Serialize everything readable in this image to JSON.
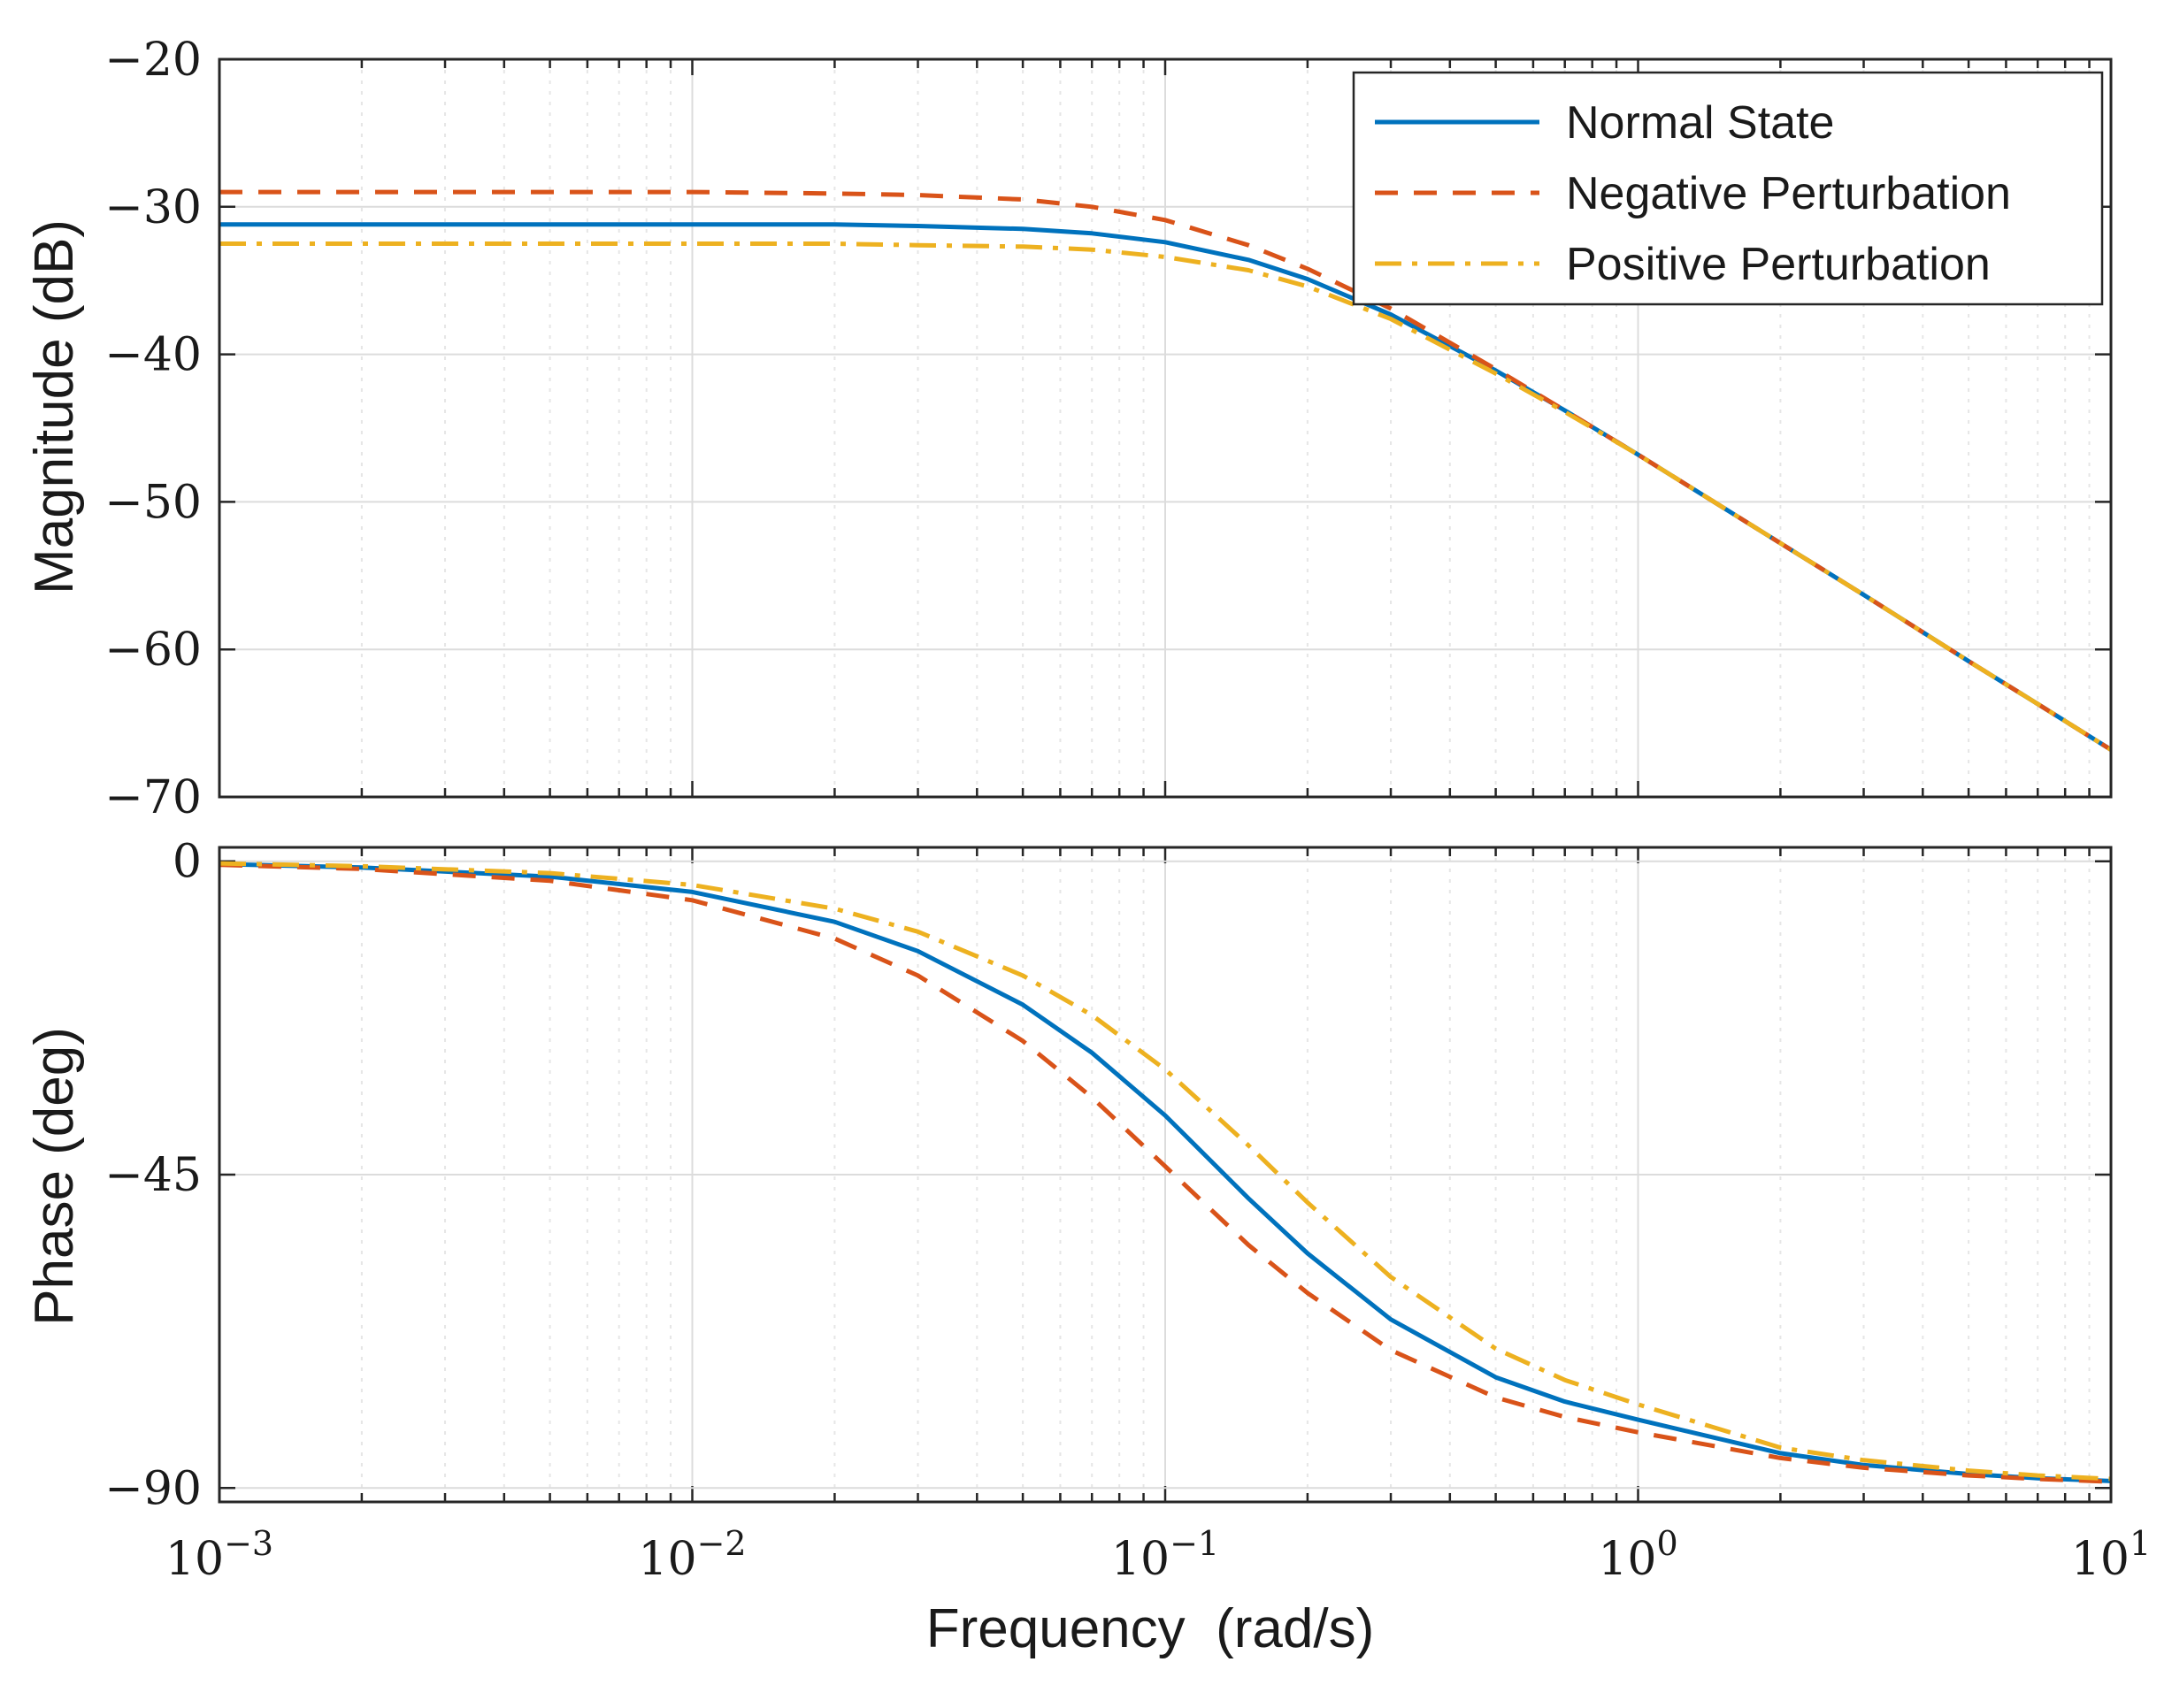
{
  "chart_data": [
    {
      "type": "line",
      "panel": "magnitude",
      "ylabel": "Magnitude (dB)",
      "xscale": "log",
      "xlim": [
        0.001,
        10
      ],
      "ylim": [
        -70,
        -20
      ],
      "yticks": [
        -20,
        -30,
        -40,
        -50,
        -60,
        -70
      ],
      "ytick_labels": [
        "−20",
        "−30",
        "−40",
        "−50",
        "−60",
        "−70"
      ],
      "grid": true,
      "legend_position": "top-right",
      "x": [
        0.001,
        0.002,
        0.005,
        0.01,
        0.02,
        0.03,
        0.05,
        0.07,
        0.1,
        0.15,
        0.2,
        0.3,
        0.5,
        0.7,
        1,
        2,
        3,
        5,
        7,
        10
      ],
      "series": [
        {
          "name": "Normal State",
          "color": "#0072BD",
          "style": "solid",
          "values": [
            -31.2,
            -31.2,
            -31.2,
            -31.2,
            -31.2,
            -31.3,
            -31.5,
            -31.8,
            -32.4,
            -33.6,
            -34.9,
            -37.3,
            -41.1,
            -43.8,
            -46.8,
            -52.8,
            -56.3,
            -60.8,
            -63.7,
            -66.8
          ]
        },
        {
          "name": "Negative Perturbation",
          "color": "#D95319",
          "style": "dashed",
          "values": [
            -29.0,
            -29.0,
            -29.0,
            -29.0,
            -29.1,
            -29.2,
            -29.5,
            -30.0,
            -30.9,
            -32.6,
            -34.2,
            -36.9,
            -41.0,
            -43.8,
            -46.8,
            -52.8,
            -56.3,
            -60.8,
            -63.7,
            -66.8
          ]
        },
        {
          "name": "Positive Perturbation",
          "color": "#EDB120",
          "style": "dashdot",
          "values": [
            -32.5,
            -32.5,
            -32.5,
            -32.5,
            -32.5,
            -32.6,
            -32.7,
            -32.9,
            -33.4,
            -34.3,
            -35.4,
            -37.6,
            -41.3,
            -43.9,
            -46.8,
            -52.8,
            -56.3,
            -60.8,
            -63.7,
            -66.8
          ]
        }
      ]
    },
    {
      "type": "line",
      "panel": "phase",
      "ylabel": "Phase (deg)",
      "xlabel": "Frequency  (rad/s)",
      "xscale": "log",
      "xlim": [
        0.001,
        10
      ],
      "ylim": [
        -92,
        2
      ],
      "yticks": [
        0,
        -45,
        -90
      ],
      "ytick_labels": [
        "0",
        "−45",
        "−90"
      ],
      "xticks": [
        0.001,
        0.01,
        0.1,
        1,
        10
      ],
      "xtick_labels": [
        {
          "base": "10",
          "exp": "−3"
        },
        {
          "base": "10",
          "exp": "−2"
        },
        {
          "base": "10",
          "exp": "−1"
        },
        {
          "base": "10",
          "exp": "0"
        },
        {
          "base": "10",
          "exp": "1"
        }
      ],
      "grid": true,
      "x": [
        0.001,
        0.002,
        0.005,
        0.01,
        0.02,
        0.03,
        0.05,
        0.07,
        0.1,
        0.15,
        0.2,
        0.3,
        0.5,
        0.7,
        1,
        2,
        3,
        5,
        7,
        10
      ],
      "series": [
        {
          "name": "Normal State",
          "color": "#0072BD",
          "style": "solid",
          "values": [
            -0.4,
            -0.9,
            -2.2,
            -4.4,
            -8.7,
            -12.9,
            -20.6,
            -27.5,
            -36.5,
            -48.4,
            -56.3,
            -65.8,
            -74.1,
            -77.6,
            -80.2,
            -85.0,
            -86.7,
            -88.0,
            -88.6,
            -89.0
          ]
        },
        {
          "name": "Negative Perturbation",
          "color": "#D95319",
          "style": "dashed",
          "values": [
            -0.5,
            -1.1,
            -2.8,
            -5.6,
            -11.1,
            -16.4,
            -25.8,
            -33.9,
            -43.8,
            -55.1,
            -62.0,
            -70.2,
            -77.0,
            -79.8,
            -82.0,
            -85.7,
            -87.1,
            -88.2,
            -88.7,
            -89.1
          ]
        },
        {
          "name": "Positive Perturbation",
          "color": "#EDB120",
          "style": "dashdot",
          "values": [
            -0.3,
            -0.7,
            -1.7,
            -3.4,
            -6.8,
            -10.1,
            -16.4,
            -22.1,
            -29.9,
            -40.8,
            -49.0,
            -59.7,
            -70.0,
            -74.5,
            -78.0,
            -84.2,
            -86.0,
            -87.5,
            -88.2,
            -88.7
          ]
        }
      ]
    }
  ]
}
